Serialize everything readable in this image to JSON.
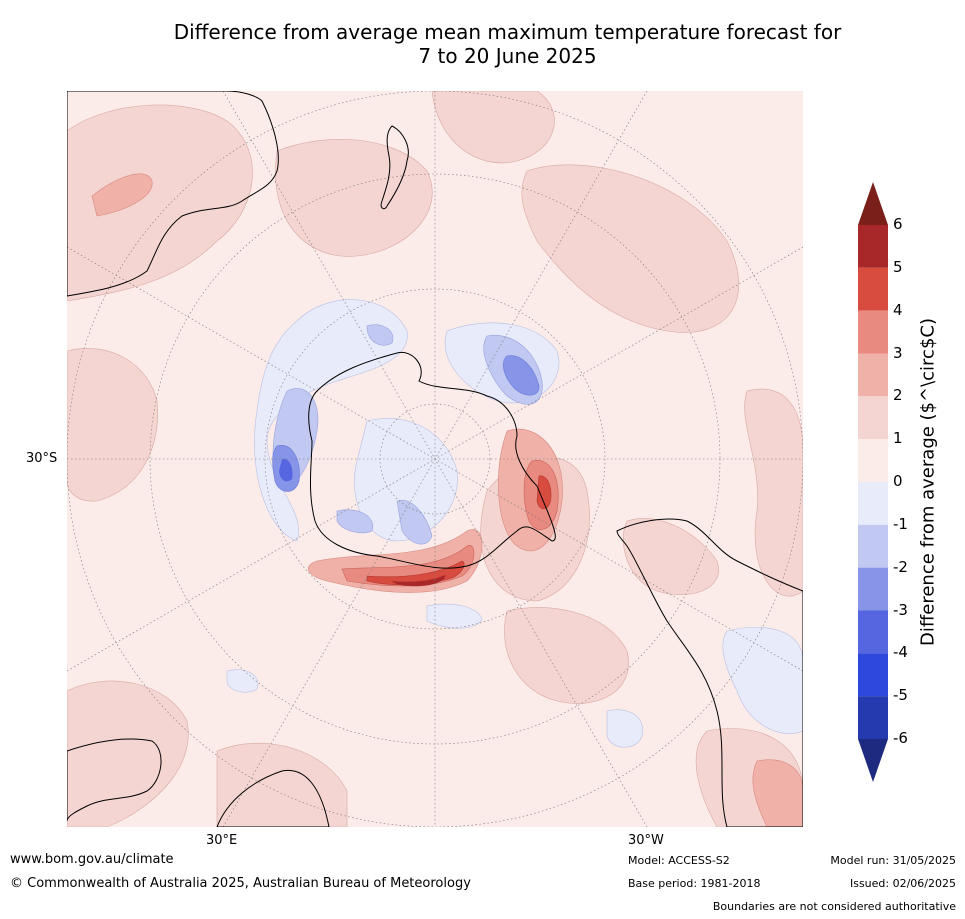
{
  "title_line1": "Difference from average mean maximum temperature forecast for",
  "title_line2": "7 to 20 June 2025",
  "map": {
    "latitude_label": "30°S",
    "longitude_labels": [
      "30°E",
      "30°W"
    ]
  },
  "legend": {
    "title": "Difference from average ($^\\circ$C)",
    "ticks": [
      "6",
      "5",
      "4",
      "3",
      "2",
      "1",
      "0",
      "-1",
      "-2",
      "-3",
      "-4",
      "-5",
      "-6"
    ],
    "colors": [
      "#7a1f1a",
      "#a8282a",
      "#d84b3f",
      "#e98a80",
      "#f0b1a9",
      "#f5d5d1",
      "#fbebe9",
      "#e8ebf9",
      "#c1c8f1",
      "#8795e8",
      "#5566e0",
      "#2e47dc",
      "#263ab0",
      "#1d2a80"
    ]
  },
  "footer": {
    "website": "www.bom.gov.au/climate",
    "copyright": "© Commonwealth of Australia 2025, Australian Bureau of Meteorology",
    "model": "Model: ACCESS-S2",
    "base_period": "Base period: 1981-2018",
    "model_run": "Model run: 31/05/2025",
    "issued": "Issued: 02/06/2025",
    "disclaimer": "Boundaries are not considered authoritative"
  }
}
